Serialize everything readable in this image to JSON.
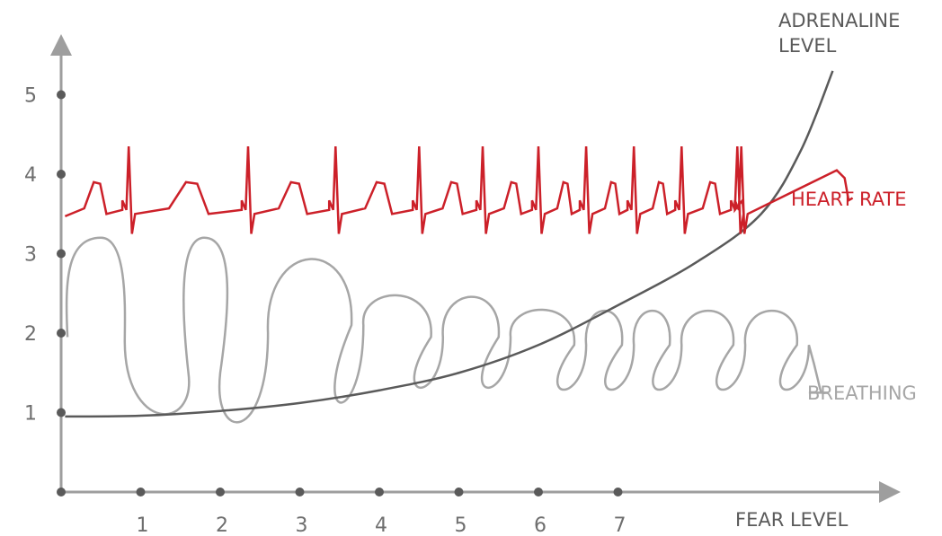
{
  "chart_data": {
    "type": "line",
    "xlabel": "FEAR LEVEL",
    "x_ticks": [
      1,
      2,
      3,
      4,
      5,
      6,
      7
    ],
    "y_ticks": [
      1,
      2,
      3,
      4,
      5
    ],
    "xlim": [
      0,
      10.5
    ],
    "ylim": [
      0,
      5.5
    ],
    "grid": false,
    "legend": "labels at line ends",
    "colors": {
      "axis": "#9e9e9e",
      "dot": "#5a5a5a",
      "heart_rate": "#cc2029",
      "breathing": "#a6a6a6",
      "adrenaline": "#5a5a5a",
      "tick_text": "#6e6e6e"
    },
    "series": [
      {
        "name": "ADRENALINE LEVEL",
        "name_lines": [
          "ADRENALINE",
          "LEVEL"
        ],
        "points": [
          [
            0.05,
            0.95
          ],
          [
            1,
            0.96
          ],
          [
            2,
            1.02
          ],
          [
            3,
            1.12
          ],
          [
            4,
            1.28
          ],
          [
            5,
            1.5
          ],
          [
            6,
            1.85
          ],
          [
            7,
            2.35
          ],
          [
            8,
            2.9
          ],
          [
            8.8,
            3.5
          ],
          [
            9.3,
            4.3
          ],
          [
            9.7,
            5.3
          ]
        ]
      },
      {
        "name": "HEART RATE",
        "baseline": 3.55,
        "beat_x": [
          0.85,
          2.35,
          3.45,
          4.5,
          5.3,
          6,
          6.6,
          7.2,
          7.8,
          8.55,
          8.5
        ],
        "start_x": 0.05,
        "end_x": 9.95,
        "end_y": 3.75
      },
      {
        "name": "BREATHING",
        "label_y": 1.25,
        "loops": [
          {
            "x": 1.0,
            "top": 3.2,
            "bottom": 0.85
          },
          {
            "x": 2.0,
            "top": 3.2,
            "bottom": 0.8
          },
          {
            "x": 3.2,
            "top": 3.2,
            "bottom": 1.0
          },
          {
            "x": 4.2,
            "top": 2.6,
            "bottom": 1.3
          },
          {
            "x": 5.05,
            "top": 2.6,
            "bottom": 1.3
          },
          {
            "x": 6.0,
            "top": 2.4,
            "bottom": 1.3
          },
          {
            "x": 6.6,
            "top": 2.4,
            "bottom": 1.3
          },
          {
            "x": 7.2,
            "top": 2.4,
            "bottom": 1.3
          },
          {
            "x": 8.0,
            "top": 2.4,
            "bottom": 1.3
          },
          {
            "x": 8.8,
            "top": 2.4,
            "bottom": 1.3
          }
        ]
      }
    ]
  }
}
